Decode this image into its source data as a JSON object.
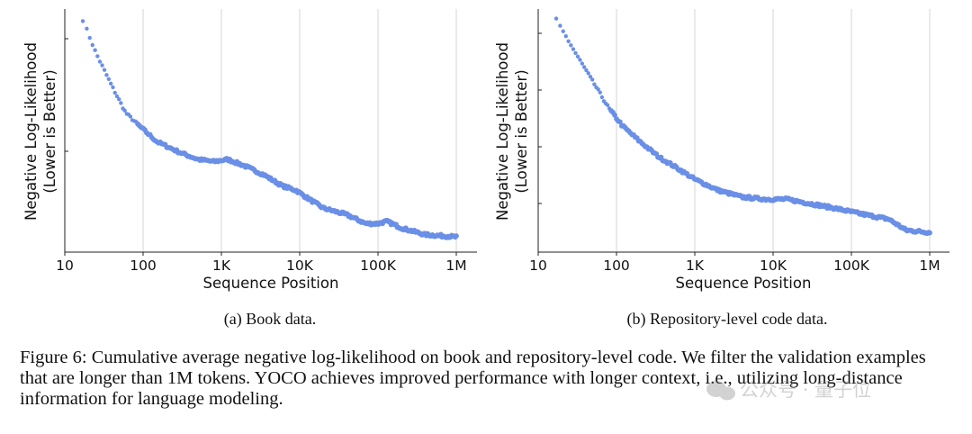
{
  "chart_data": [
    {
      "type": "scatter",
      "subcaption": "(a) Book data.",
      "xlabel": "Sequence Position",
      "ylabel_line1": "Negative Log-Likelihood",
      "ylabel_line2": "(Lower is Better)",
      "x_scale": "log",
      "x_ticks": [
        10,
        100,
        1000,
        10000,
        100000,
        1000000
      ],
      "x_tick_labels": [
        "10",
        "100",
        "1K",
        "10K",
        "100K",
        "1M"
      ],
      "y_tick_labels_shown": false,
      "grid": "vertical",
      "color": "#6a8fe6",
      "curve": [
        [
          17,
          1.0
        ],
        [
          25,
          0.85
        ],
        [
          40,
          0.7
        ],
        [
          60,
          0.58
        ],
        [
          90,
          0.52
        ],
        [
          150,
          0.45
        ],
        [
          300,
          0.4
        ],
        [
          500,
          0.37
        ],
        [
          800,
          0.36
        ],
        [
          1200,
          0.37
        ],
        [
          2000,
          0.34
        ],
        [
          3500,
          0.3
        ],
        [
          6000,
          0.25
        ],
        [
          9000,
          0.23
        ],
        [
          12000,
          0.2
        ],
        [
          20000,
          0.15
        ],
        [
          40000,
          0.12
        ],
        [
          70000,
          0.08
        ],
        [
          100000,
          0.08
        ],
        [
          130000,
          0.09
        ],
        [
          200000,
          0.06
        ],
        [
          400000,
          0.03
        ],
        [
          1000000,
          0.02
        ]
      ]
    },
    {
      "type": "scatter",
      "subcaption": "(b) Repository-level code data.",
      "xlabel": "Sequence Position",
      "ylabel_line1": "Negative Log-Likelihood",
      "ylabel_line2": "(Lower is Better)",
      "x_scale": "log",
      "x_ticks": [
        10,
        100,
        1000,
        10000,
        100000,
        1000000
      ],
      "x_tick_labels": [
        "10",
        "100",
        "1K",
        "10K",
        "100K",
        "1M"
      ],
      "y_tick_labels_shown": false,
      "grid": "vertical",
      "color": "#6a8fe6",
      "curve": [
        [
          17,
          1.0
        ],
        [
          30,
          0.85
        ],
        [
          50,
          0.72
        ],
        [
          80,
          0.6
        ],
        [
          120,
          0.52
        ],
        [
          200,
          0.45
        ],
        [
          350,
          0.38
        ],
        [
          600,
          0.33
        ],
        [
          1000,
          0.28
        ],
        [
          2000,
          0.23
        ],
        [
          4000,
          0.2
        ],
        [
          8000,
          0.19
        ],
        [
          15000,
          0.19
        ],
        [
          30000,
          0.17
        ],
        [
          60000,
          0.15
        ],
        [
          150000,
          0.12
        ],
        [
          300000,
          0.1
        ],
        [
          500000,
          0.05
        ],
        [
          1000000,
          0.04
        ]
      ]
    }
  ],
  "caption": "Figure 6: Cumulative average negative log-likelihood on book and repository-level code. We filter the validation examples that are longer than 1M tokens. YOCO achieves improved performance with longer context, i.e., utilizing long-distance information for language modeling.",
  "watermark": "公众号 · 量子位"
}
